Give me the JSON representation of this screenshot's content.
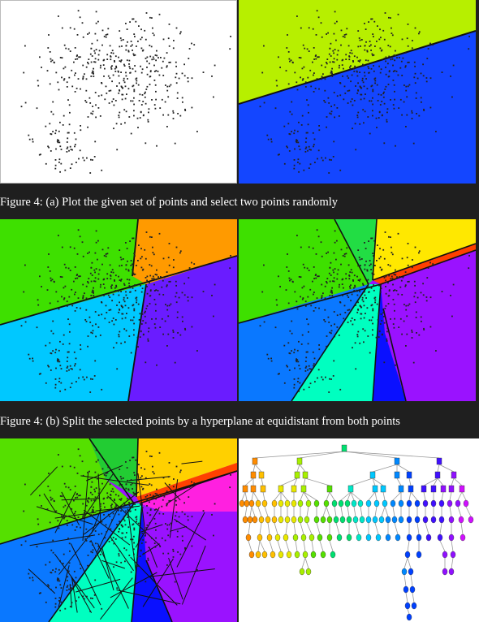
{
  "captions": {
    "caption_a": "Figure 4: (a) Plot the given set of points and select two points randomly",
    "caption_b": "Figure 4: (b) Split the selected points by a hyperplane at equidistant from both points"
  },
  "colors": {
    "background": "#1f1f1f",
    "lime": "#b7ef00",
    "blue": "#1446ff",
    "green": "#3ee000",
    "orange": "#ff9a00",
    "cyan": "#00c8ff",
    "violet": "#6a1cff",
    "yellow": "#ffe800",
    "purple": "#9a12ff",
    "teal": "#00ffc0",
    "red": "#ff4000",
    "mid_blue": "#0a78ff",
    "deep_blue": "#0a10ff"
  }
}
